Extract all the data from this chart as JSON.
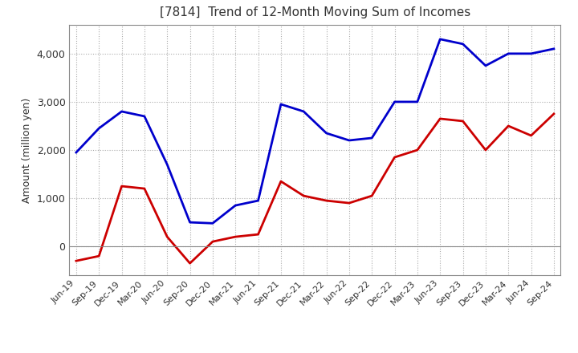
{
  "title": "[7814]  Trend of 12-Month Moving Sum of Incomes",
  "ylabel": "Amount (million yen)",
  "x_labels": [
    "Jun-19",
    "Sep-19",
    "Dec-19",
    "Mar-20",
    "Jun-20",
    "Sep-20",
    "Dec-20",
    "Mar-21",
    "Jun-21",
    "Sep-21",
    "Dec-21",
    "Mar-22",
    "Jun-22",
    "Sep-22",
    "Dec-22",
    "Mar-23",
    "Jun-23",
    "Sep-23",
    "Dec-23",
    "Mar-24",
    "Jun-24",
    "Sep-24"
  ],
  "ordinary_income": [
    1950,
    2450,
    2800,
    2700,
    1700,
    500,
    480,
    850,
    950,
    2950,
    2800,
    2350,
    2200,
    2250,
    3000,
    3000,
    4300,
    4200,
    3750,
    4000,
    4000,
    4100
  ],
  "net_income": [
    -300,
    -200,
    1250,
    1200,
    200,
    -350,
    100,
    200,
    250,
    1350,
    1050,
    950,
    900,
    1050,
    1850,
    2000,
    2650,
    2600,
    2000,
    2500,
    2300,
    2750
  ],
  "ordinary_color": "#0000cc",
  "net_color": "#cc0000",
  "ylim_min": -600,
  "ylim_max": 4600,
  "background_color": "#ffffff",
  "plot_bg_color": "#ffffff",
  "grid_color": "#aaaaaa",
  "title_color": "#333333"
}
